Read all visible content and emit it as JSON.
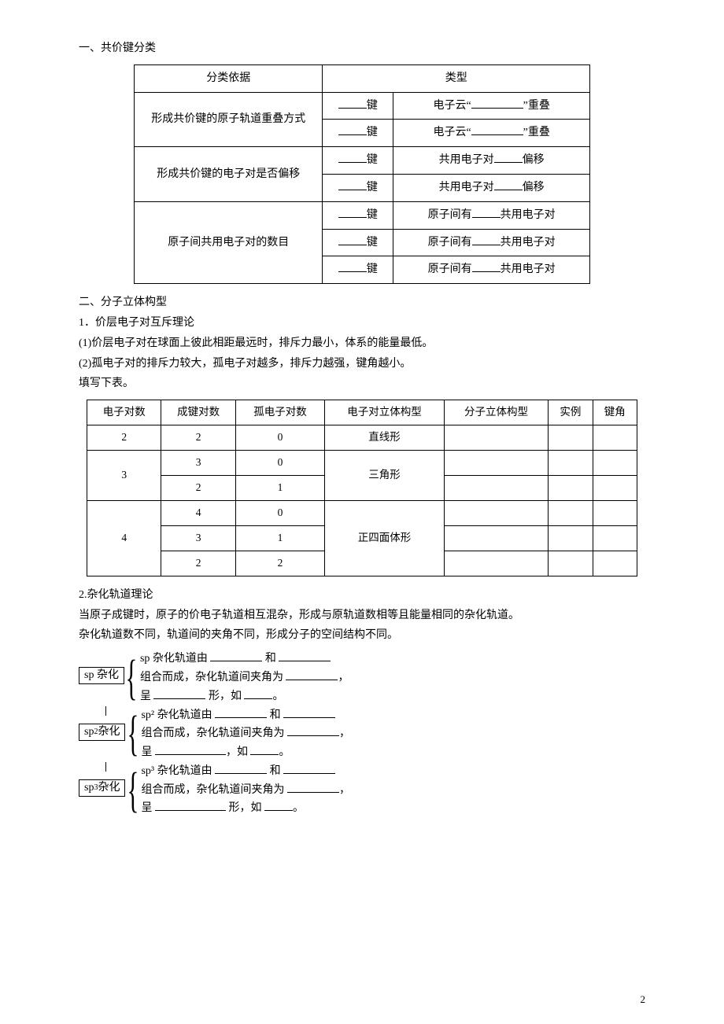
{
  "section1_title": "一、共价键分类",
  "table1": {
    "header": {
      "c1": "分类依据",
      "c2": "类型"
    },
    "rows": [
      {
        "basis": "形成共价键的原子轨道重叠方式",
        "sub": [
          {
            "mid": "键",
            "right_pre": "电子云“",
            "right_post": "”重叠"
          },
          {
            "mid": "键",
            "right_pre": "电子云“",
            "right_post": "”重叠"
          }
        ]
      },
      {
        "basis": "形成共价键的电子对是否偏移",
        "sub": [
          {
            "mid": "键",
            "right_pre": "共用电子对",
            "right_post": "偏移"
          },
          {
            "mid": "键",
            "right_pre": "共用电子对",
            "right_post": "偏移"
          }
        ]
      },
      {
        "basis": "原子间共用电子对的数目",
        "sub": [
          {
            "mid": "键",
            "right_pre": "原子间有",
            "right_post": "共用电子对"
          },
          {
            "mid": "键",
            "right_pre": "原子间有",
            "right_post": "共用电子对"
          },
          {
            "mid": "键",
            "right_pre": "原子间有",
            "right_post": "共用电子对"
          }
        ]
      }
    ]
  },
  "section2_title": "二、分子立体构型",
  "sub1_title": "1．价层电子对互斥理论",
  "sub1_line1": "(1)价层电子对在球面上彼此相距最远时，排斥力最小，体系的能量最低。",
  "sub1_line2": "(2)孤电子对的排斥力较大，孤电子对越多，排斥力越强，键角越小。",
  "fill_label": "填写下表。",
  "table2": {
    "headers": [
      "电子对数",
      "成键对数",
      "孤电子对数",
      "电子对立体构型",
      "分子立体构型",
      "实例",
      "键角"
    ],
    "rows": [
      [
        "2",
        "2",
        "0",
        "直线形",
        "",
        "",
        ""
      ],
      [
        "3",
        "3",
        "0",
        "三角形_span",
        "",
        "",
        ""
      ],
      [
        "",
        "2",
        "1",
        "",
        "",
        "",
        ""
      ],
      [
        "4",
        "4",
        "0",
        "正四面体形_span",
        "",
        "",
        ""
      ],
      [
        "",
        "3",
        "1",
        "",
        "",
        "",
        ""
      ],
      [
        "",
        "2",
        "2",
        "",
        "",
        "",
        ""
      ]
    ]
  },
  "sub2_title": "2.杂化轨道理论",
  "sub2_line1": "当原子成键时，原子的价电子轨道相互混杂，形成与原轨道数相等且能量相同的杂化轨道。",
  "sub2_line2": "杂化轨道数不同，轨道间的夹角不同，形成分子的空间结构不同。",
  "hybrid": [
    {
      "label": "sp 杂化",
      "l1a": "sp 杂化轨道由",
      "l1b": "和",
      "l2a": "组合而成，杂化轨道间夹角为",
      "l2b": "，",
      "l3a": "呈",
      "l3b": "形，如",
      "l3c": "。"
    },
    {
      "label": "sp² 杂化",
      "l1a": "sp² 杂化轨道由",
      "l1b": "和",
      "l2a": "组合而成，杂化轨道间夹角为",
      "l2b": "，",
      "l3a": "呈",
      "l3b": "，如",
      "l3c": "。"
    },
    {
      "label": "sp³ 杂化",
      "l1a": "sp³ 杂化轨道由",
      "l1b": "和",
      "l2a": "组合而成，杂化轨道间夹角为",
      "l2b": "，",
      "l3a": "呈",
      "l3b": "形，如",
      "l3c": "。"
    }
  ],
  "page_number": "2"
}
